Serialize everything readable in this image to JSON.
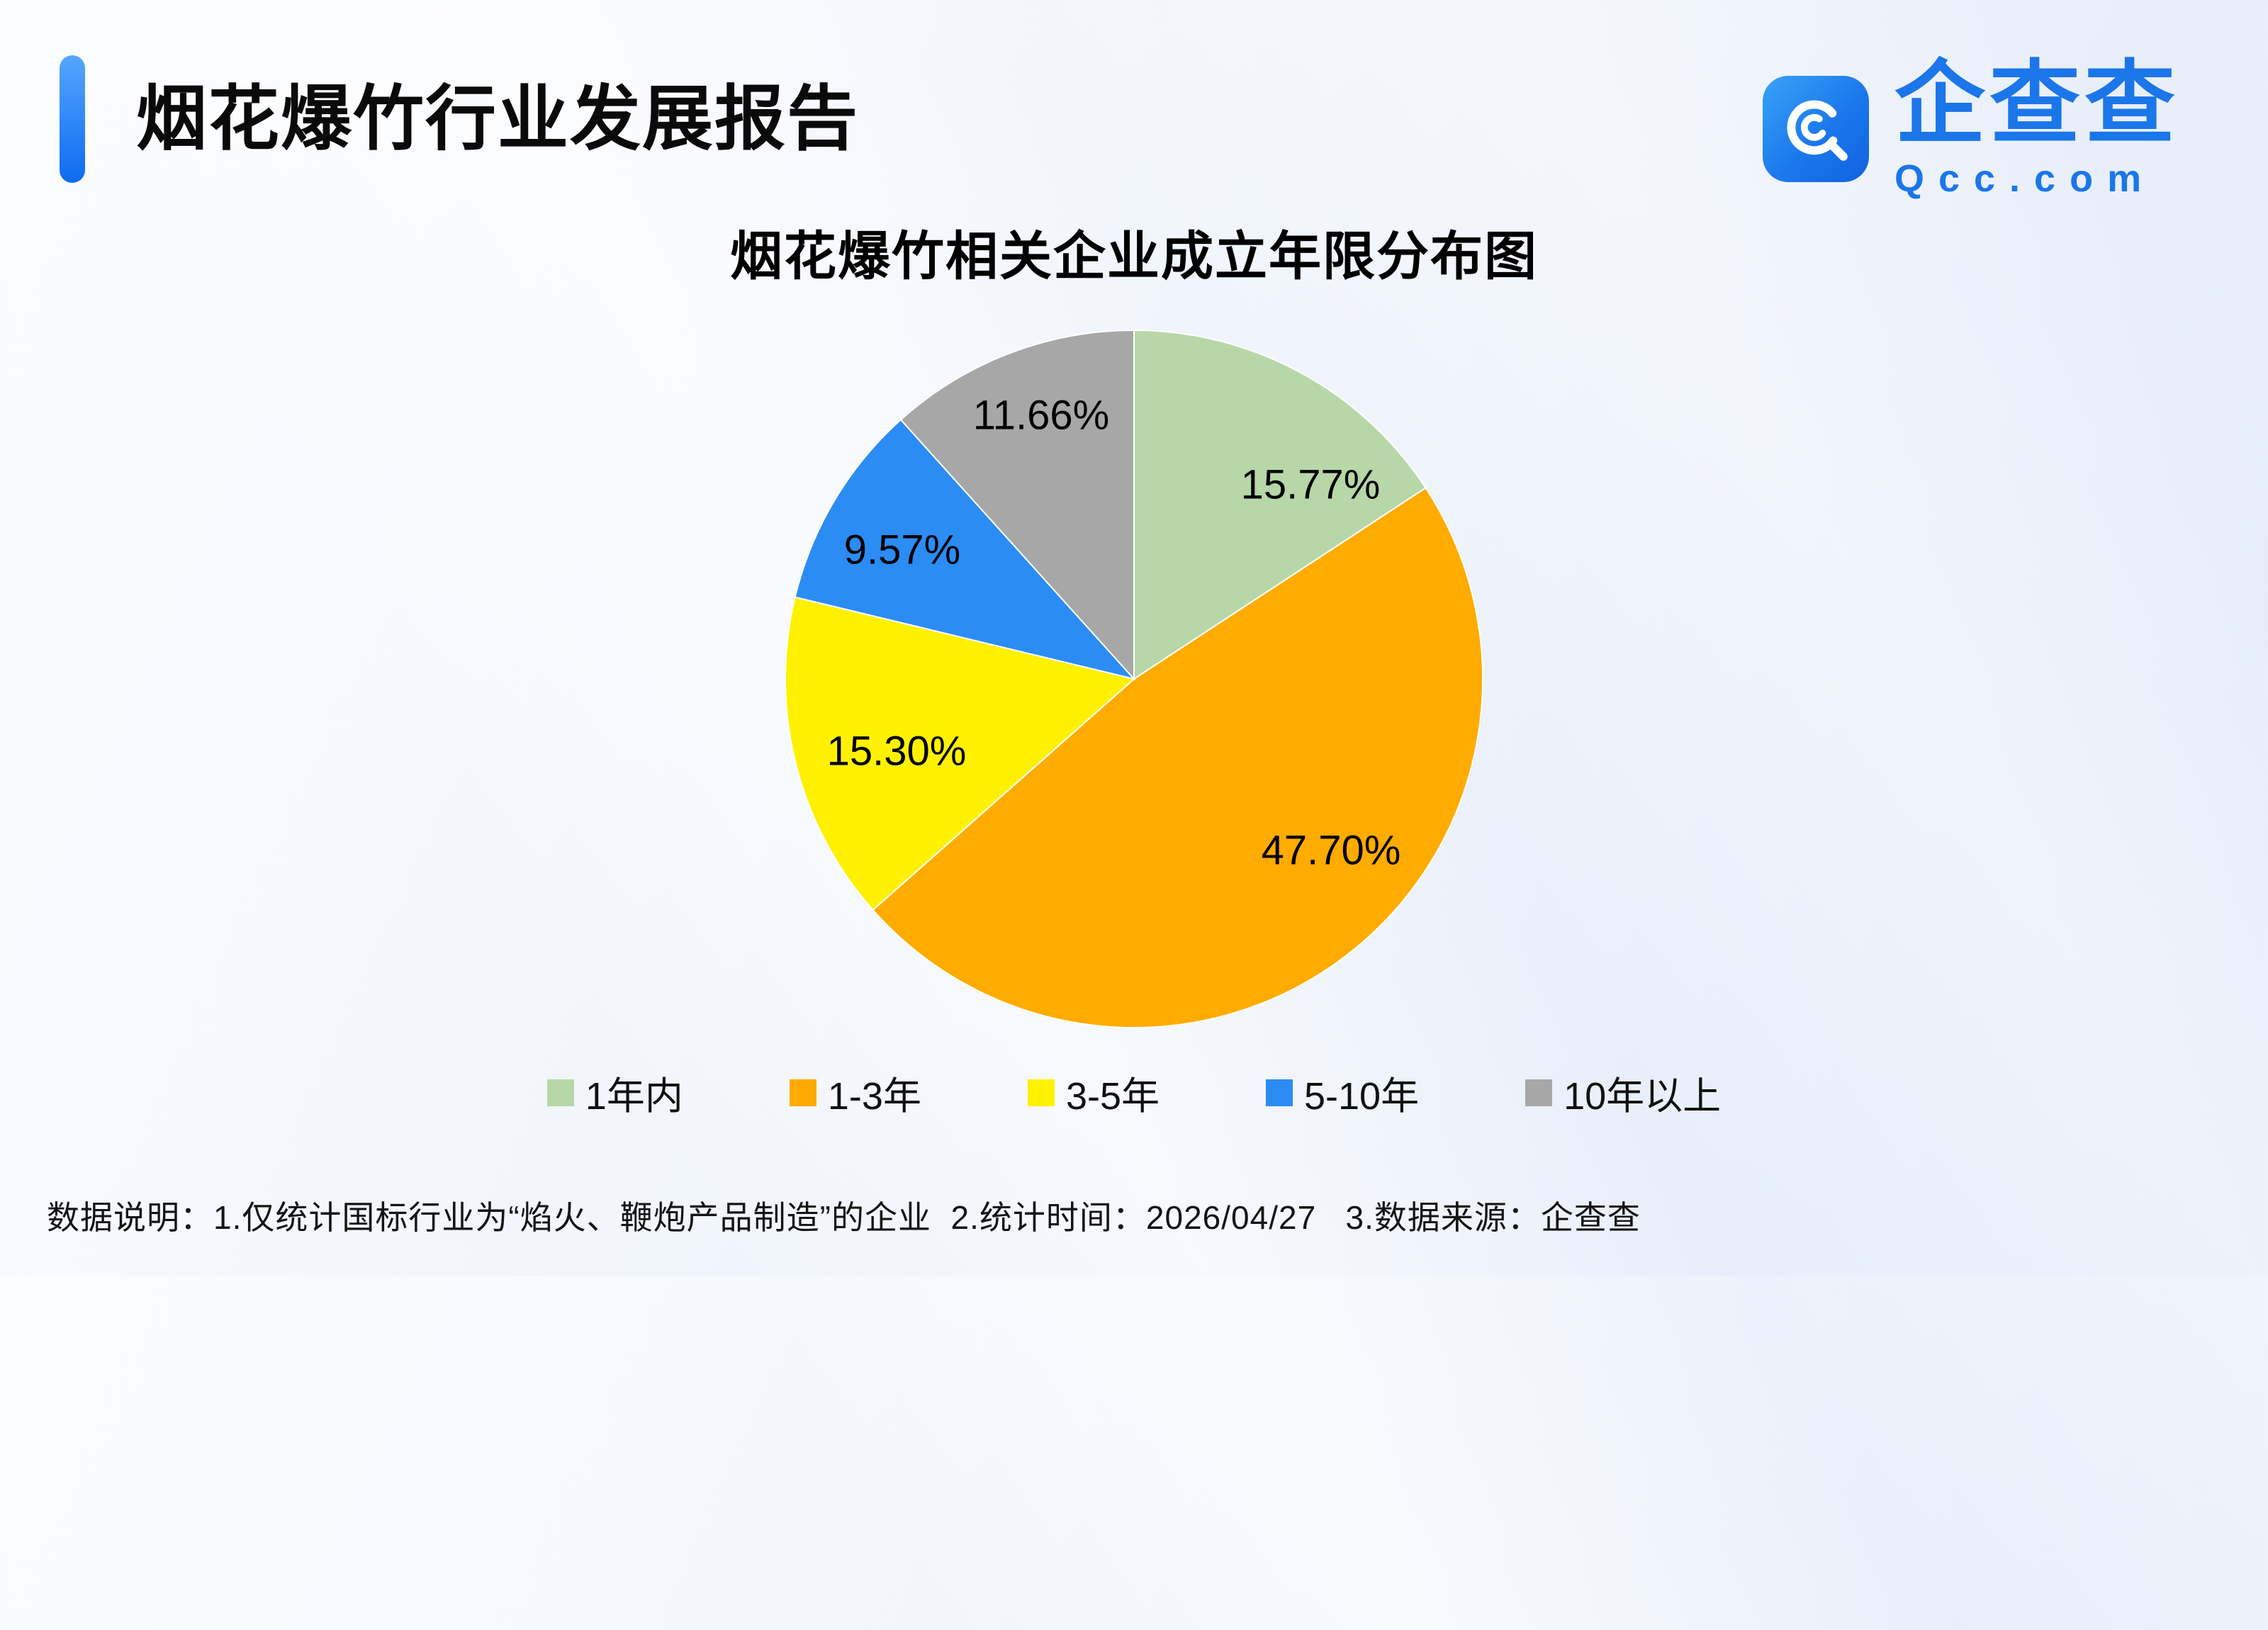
{
  "page": {
    "report_title": "烟花爆竹行业发展报告",
    "footer_note": "数据说明：1.仅统计国标行业为“焰火、鞭炮产品制造”的企业  2.统计时间：2026/04/27   3.数据来源：企查查"
  },
  "logo": {
    "brand_name": "企查查",
    "brand_domain": "Qcc.com",
    "brand_color": "#1b76ea"
  },
  "chart_data": {
    "type": "pie",
    "title": "烟花爆竹相关企业成立年限分布图",
    "unit": "%",
    "direction": "clockwise",
    "start_angle_deg": 0,
    "legend_position": "bottom",
    "series": [
      {
        "label": "1年内",
        "value": 15.77,
        "display": "15.77%",
        "color": "#b7d7a8"
      },
      {
        "label": "1-3年",
        "value": 47.7,
        "display": "47.70%",
        "color": "#ffab00"
      },
      {
        "label": "3-5年",
        "value": 15.3,
        "display": "15.30%",
        "color": "#fff100"
      },
      {
        "label": "5-10年",
        "value": 9.57,
        "display": "9.57%",
        "color": "#2b8cf4"
      },
      {
        "label": "10年以上",
        "value": 11.66,
        "display": "11.66%",
        "color": "#a7a7a7"
      }
    ]
  }
}
